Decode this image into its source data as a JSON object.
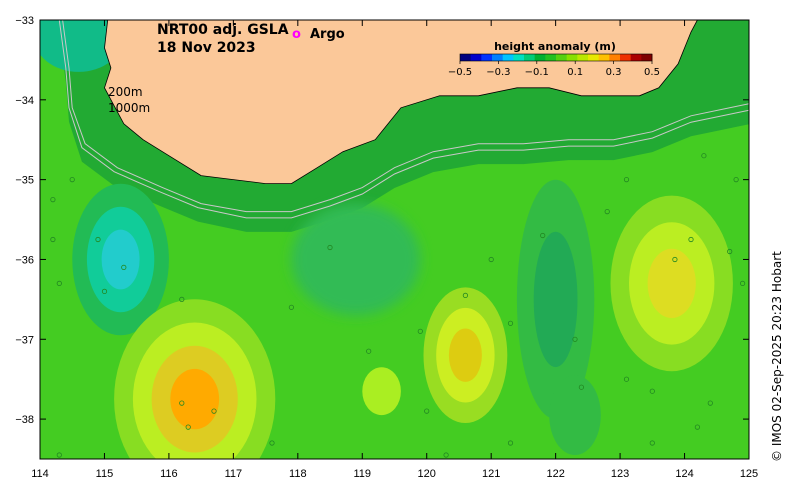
{
  "map": {
    "title_line1": "NRT00 adj. GSLA",
    "title_line2": "18 Nov 2023",
    "argo_symbol": "o",
    "argo_label": "Argo",
    "argo_color": "#ff00ff",
    "land_color": "#fbc899",
    "isobaths": {
      "shallow_label": "200m",
      "deep_label": "1000m",
      "line_color": "#c8c8c8"
    },
    "credit": "© IMOS 02-Sep-2025 20:23 Hobart",
    "lon_range": [
      114,
      125
    ],
    "lat_range": [
      -38.5,
      -33
    ]
  },
  "axes": {
    "x_ticks": [
      {
        "value": 114,
        "label": "114"
      },
      {
        "value": 115,
        "label": "115"
      },
      {
        "value": 116,
        "label": "116"
      },
      {
        "value": 117,
        "label": "117"
      },
      {
        "value": 118,
        "label": "118"
      },
      {
        "value": 119,
        "label": "119"
      },
      {
        "value": 120,
        "label": "120"
      },
      {
        "value": 121,
        "label": "121"
      },
      {
        "value": 122,
        "label": "122"
      },
      {
        "value": 123,
        "label": "123"
      },
      {
        "value": 124,
        "label": "124"
      },
      {
        "value": 125,
        "label": "125"
      }
    ],
    "y_ticks": [
      {
        "value": -33,
        "label": "−33"
      },
      {
        "value": -34,
        "label": "−34"
      },
      {
        "value": -35,
        "label": "−35"
      },
      {
        "value": -36,
        "label": "−36"
      },
      {
        "value": -37,
        "label": "−37"
      },
      {
        "value": -38,
        "label": "−38"
      }
    ]
  },
  "colorbar": {
    "title": "height anomaly (m)",
    "min": -0.5,
    "max": 0.5,
    "colors": [
      "#00007f",
      "#0000cc",
      "#0033ff",
      "#0080ff",
      "#00c4ff",
      "#00e0c0",
      "#00cc77",
      "#00b030",
      "#22c020",
      "#55d010",
      "#88e000",
      "#bbe800",
      "#e8e800",
      "#ffc000",
      "#ff8000",
      "#ee3000",
      "#aa0000",
      "#7f0000"
    ],
    "ticks": [
      {
        "value": -0.5,
        "label": "−0.5"
      },
      {
        "value": -0.3,
        "label": "−0.3"
      },
      {
        "value": -0.1,
        "label": "−0.1"
      },
      {
        "value": 0.1,
        "label": "0.1"
      },
      {
        "value": 0.3,
        "label": "0.3"
      },
      {
        "value": 0.5,
        "label": "0.5"
      }
    ]
  },
  "features": {
    "ocean_base": "#44cc22",
    "anomalies": [
      {
        "name": "eddy-west-low",
        "lon": 115.25,
        "lat": -36.0,
        "rx": 0.75,
        "ry": 0.95,
        "levels": [
          "#22bb55",
          "#11cc99",
          "#22cccc"
        ]
      },
      {
        "name": "eddy-southwest-high",
        "lon": 116.4,
        "lat": -37.75,
        "rx": 1.25,
        "ry": 1.25,
        "levels": [
          "#88dd22",
          "#bbee22",
          "#ddcc22",
          "#ffaa00"
        ]
      },
      {
        "name": "eddy-central-high",
        "lon": 120.6,
        "lat": -37.2,
        "rx": 0.65,
        "ry": 0.85,
        "levels": [
          "#99dd22",
          "#ccee22",
          "#ddcc11"
        ]
      },
      {
        "name": "eddy-east-high",
        "lon": 123.8,
        "lat": -36.3,
        "rx": 0.95,
        "ry": 1.1,
        "levels": [
          "#88dd22",
          "#bbee22",
          "#dddd22"
        ]
      },
      {
        "name": "trough-central-low",
        "lon": 122.0,
        "lat": -36.5,
        "rx": 0.6,
        "ry": 1.5,
        "levels": [
          "#33bb44",
          "#22aa55"
        ]
      },
      {
        "name": "patch-south-high",
        "lon": 119.3,
        "lat": -37.65,
        "rx": 0.3,
        "ry": 0.3,
        "levels": [
          "#aaee22"
        ]
      },
      {
        "name": "patch-southeast-low",
        "lon": 122.3,
        "lat": -37.95,
        "rx": 0.4,
        "ry": 0.5,
        "levels": [
          "#33bb44"
        ]
      }
    ],
    "argo_floats": [
      {
        "lon": 114.2,
        "lat": -35.25
      },
      {
        "lon": 114.5,
        "lat": -35.0
      },
      {
        "lon": 114.2,
        "lat": -35.75
      },
      {
        "lon": 114.9,
        "lat": -35.75
      },
      {
        "lon": 115.0,
        "lat": -36.4
      },
      {
        "lon": 114.3,
        "lat": -36.3
      },
      {
        "lon": 115.3,
        "lat": -36.1
      },
      {
        "lon": 116.2,
        "lat": -36.5
      },
      {
        "lon": 116.7,
        "lat": -37.9
      },
      {
        "lon": 116.2,
        "lat": -37.8
      },
      {
        "lon": 117.9,
        "lat": -36.6
      },
      {
        "lon": 118.5,
        "lat": -35.85
      },
      {
        "lon": 119.1,
        "lat": -37.15
      },
      {
        "lon": 119.9,
        "lat": -36.9
      },
      {
        "lon": 120.6,
        "lat": -36.45
      },
      {
        "lon": 120.0,
        "lat": -37.9
      },
      {
        "lon": 121.0,
        "lat": -36.0
      },
      {
        "lon": 121.3,
        "lat": -36.8
      },
      {
        "lon": 121.8,
        "lat": -35.7
      },
      {
        "lon": 122.3,
        "lat": -37.0
      },
      {
        "lon": 122.4,
        "lat": -37.6
      },
      {
        "lon": 122.8,
        "lat": -35.4
      },
      {
        "lon": 123.1,
        "lat": -35.0
      },
      {
        "lon": 123.1,
        "lat": -37.5
      },
      {
        "lon": 123.5,
        "lat": -37.65
      },
      {
        "lon": 123.85,
        "lat": -36.0
      },
      {
        "lon": 124.1,
        "lat": -35.75
      },
      {
        "lon": 124.3,
        "lat": -34.7
      },
      {
        "lon": 124.8,
        "lat": -35.0
      },
      {
        "lon": 124.7,
        "lat": -35.9
      },
      {
        "lon": 124.9,
        "lat": -36.3
      },
      {
        "lon": 124.4,
        "lat": -37.8
      },
      {
        "lon": 124.2,
        "lat": -38.1
      },
      {
        "lon": 123.5,
        "lat": -38.3
      },
      {
        "lon": 121.3,
        "lat": -38.3
      },
      {
        "lon": 120.3,
        "lat": -38.45
      },
      {
        "lon": 114.3,
        "lat": -38.45
      },
      {
        "lon": 117.6,
        "lat": -38.3
      },
      {
        "lon": 116.3,
        "lat": -38.1
      }
    ],
    "coast": [
      [
        114.05,
        -33.0
      ],
      [
        115.05,
        -33.0
      ],
      [
        115.0,
        -33.35
      ],
      [
        115.1,
        -33.6
      ],
      [
        115.0,
        -33.85
      ],
      [
        115.3,
        -34.3
      ],
      [
        115.6,
        -34.5
      ],
      [
        116.0,
        -34.7
      ],
      [
        116.5,
        -34.95
      ],
      [
        117.0,
        -35.0
      ],
      [
        117.5,
        -35.05
      ],
      [
        117.9,
        -35.05
      ],
      [
        118.3,
        -34.85
      ],
      [
        118.7,
        -34.65
      ],
      [
        119.2,
        -34.5
      ],
      [
        119.6,
        -34.1
      ],
      [
        120.2,
        -33.95
      ],
      [
        120.8,
        -33.95
      ],
      [
        121.4,
        -33.85
      ],
      [
        121.9,
        -33.85
      ],
      [
        122.4,
        -33.95
      ],
      [
        122.8,
        -33.95
      ],
      [
        123.3,
        -33.95
      ],
      [
        123.6,
        -33.85
      ],
      [
        123.9,
        -33.55
      ],
      [
        124.1,
        -33.15
      ],
      [
        124.2,
        -33.0
      ]
    ],
    "shelf_edges": [
      [
        [
          114.0,
          -33.0
        ],
        [
          114.35,
          -33.0
        ],
        [
          114.45,
          -33.6
        ],
        [
          114.5,
          -34.1
        ],
        [
          114.7,
          -34.55
        ],
        [
          115.2,
          -34.85
        ],
        [
          115.9,
          -35.1
        ],
        [
          116.5,
          -35.3
        ],
        [
          117.2,
          -35.4
        ],
        [
          117.9,
          -35.4
        ],
        [
          118.5,
          -35.25
        ],
        [
          119.0,
          -35.1
        ],
        [
          119.5,
          -34.85
        ],
        [
          120.1,
          -34.65
        ],
        [
          120.8,
          -34.55
        ],
        [
          121.5,
          -34.55
        ],
        [
          122.2,
          -34.5
        ],
        [
          122.9,
          -34.5
        ],
        [
          123.5,
          -34.4
        ],
        [
          124.1,
          -34.2
        ],
        [
          124.7,
          -34.1
        ],
        [
          125.0,
          -34.05
        ]
      ],
      [
        [
          114.0,
          -33.0
        ],
        [
          114.3,
          -33.0
        ],
        [
          114.4,
          -33.6
        ],
        [
          114.45,
          -34.1
        ],
        [
          114.65,
          -34.6
        ],
        [
          115.15,
          -34.9
        ],
        [
          115.85,
          -35.15
        ],
        [
          116.45,
          -35.35
        ],
        [
          117.2,
          -35.48
        ],
        [
          117.9,
          -35.48
        ],
        [
          118.5,
          -35.33
        ],
        [
          119.0,
          -35.18
        ],
        [
          119.5,
          -34.93
        ],
        [
          120.1,
          -34.73
        ],
        [
          120.8,
          -34.63
        ],
        [
          121.5,
          -34.63
        ],
        [
          122.2,
          -34.58
        ],
        [
          122.9,
          -34.58
        ],
        [
          123.5,
          -34.48
        ],
        [
          124.1,
          -34.28
        ],
        [
          124.7,
          -34.18
        ],
        [
          125.0,
          -34.13
        ]
      ]
    ]
  }
}
